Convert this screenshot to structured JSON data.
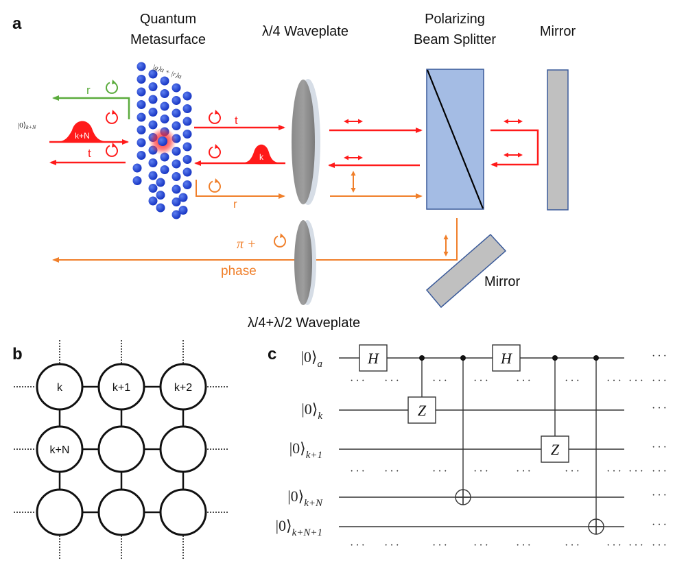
{
  "panel_a": {
    "label": "a",
    "metasurface_title_1": "Quantum",
    "metasurface_title_2": "Metasurface",
    "atom_state": "|g⟩a + |r⟩a",
    "waveplate_title": "λ/4 Waveplate",
    "pbs_title_1": "Polarizing",
    "pbs_title_2": "Beam Splitter",
    "mirror_title": "Mirror",
    "mirror2_title": "Mirror",
    "waveplate2_title": "λ/4+λ/2 Waveplate",
    "input_state": "|0⟩",
    "input_state_sub": "k+N",
    "pulse_in": "k+N",
    "pulse_back": "k",
    "r_green": "r",
    "t_left": "t",
    "t_right": "t",
    "r_orange": "r",
    "pi_plus": "π +",
    "phase": "phase",
    "colors": {
      "red": "#ff1a1a",
      "green": "#5aab3c",
      "orange": "#f07f2a",
      "atom": "#1c3fd6",
      "pbs": "#a4bce4",
      "mirror": "#c0c0c0"
    }
  },
  "panel_b": {
    "label": "b",
    "nodes": [
      "k",
      "k+1",
      "k+2",
      "k+N",
      "",
      "",
      "",
      "",
      ""
    ]
  },
  "panel_c": {
    "label": "c",
    "qubits": [
      {
        "ket": "|0⟩",
        "sub": "a"
      },
      {
        "ket": "|0⟩",
        "sub": "k"
      },
      {
        "ket": "|0⟩",
        "sub": "k+1"
      },
      {
        "ket": "|0⟩",
        "sub": "k+N"
      },
      {
        "ket": "|0⟩",
        "sub": "k+N+1"
      }
    ],
    "gate_h": "H",
    "gate_z": "Z",
    "ellipsis": "···"
  }
}
